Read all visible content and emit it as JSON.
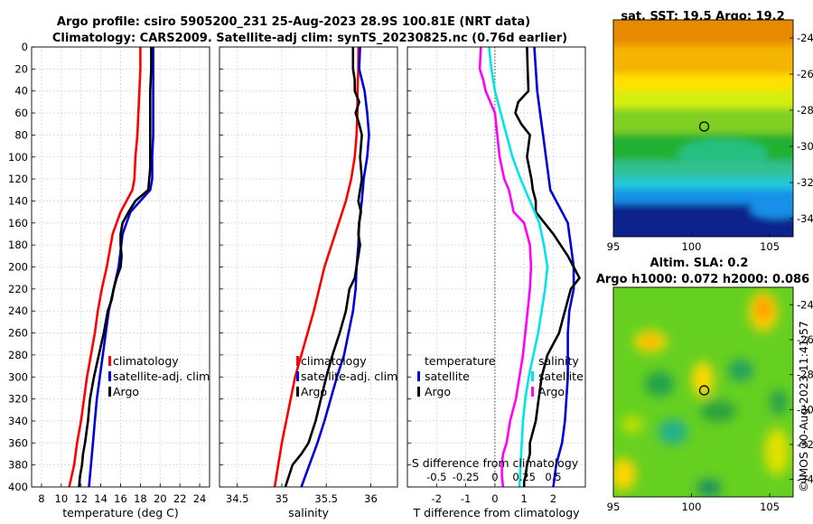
{
  "header": {
    "title_line1": "Argo profile: csiro 5905200_231 25-Aug-2023 28.9S 100.81E (NRT data)",
    "title_line2": "Climatology: CARS2009. Satellite-adj clim: synTS_20230825.nc (0.76d earlier)"
  },
  "credit": "©IMOS 30-Aug-2023 11:41:57",
  "colors": {
    "climatology": "#ff0000",
    "satellite": "#0000dd",
    "argo": "#000000",
    "temp_diff": "#ff00ff",
    "sal_diff": "#00e5e5"
  },
  "depth_axis": {
    "ticks": [
      "0",
      "20",
      "40",
      "60",
      "80",
      "100",
      "120",
      "140",
      "160",
      "180",
      "200",
      "220",
      "240",
      "260",
      "280",
      "300",
      "320",
      "340",
      "360",
      "380",
      "400"
    ],
    "range": [
      0,
      400
    ]
  },
  "chart_data": [
    {
      "type": "line",
      "id": "temperature",
      "xlabel": "temperature (deg C)",
      "xlim": [
        7,
        25
      ],
      "xticks": [
        "8",
        "10",
        "12",
        "14",
        "16",
        "18",
        "20",
        "22",
        "24"
      ],
      "ylim": [
        0,
        400
      ],
      "legend": [
        "climatology",
        "satellite-adj. clim",
        "Argo"
      ],
      "series": [
        {
          "name": "climatology",
          "color": "#ff0000",
          "x": [
            18.0,
            18.0,
            17.9,
            17.8,
            17.7,
            17.5,
            17.4,
            17.2,
            16.0,
            15.2,
            14.6,
            14.1,
            13.7,
            13.4,
            13.0,
            12.6,
            12.3,
            12.0,
            11.6,
            11.3,
            10.8
          ],
          "depth": [
            0,
            20,
            40,
            60,
            80,
            100,
            120,
            130,
            150,
            170,
            200,
            220,
            240,
            260,
            280,
            300,
            320,
            340,
            360,
            380,
            400
          ]
        },
        {
          "name": "satellite-adj. clim",
          "color": "#0000dd",
          "x": [
            19.3,
            19.3,
            19.3,
            19.3,
            19.3,
            19.2,
            19.2,
            19.0,
            17.0,
            16.2,
            15.8,
            15.3,
            14.8,
            14.5,
            14.2,
            13.9,
            13.6,
            13.4,
            13.2,
            13.0,
            12.8
          ],
          "depth": [
            0,
            20,
            40,
            60,
            80,
            100,
            120,
            130,
            150,
            170,
            200,
            220,
            240,
            260,
            280,
            300,
            320,
            340,
            360,
            380,
            400
          ]
        },
        {
          "name": "Argo",
          "color": "#000000",
          "x": [
            19.1,
            19.1,
            19.0,
            19.0,
            19.0,
            19.0,
            19.0,
            18.9,
            18.8,
            17.5,
            16.8,
            16.2,
            16.0,
            16.0,
            16.1,
            16.0,
            15.6,
            15.3,
            15.1,
            14.7,
            14.3,
            13.8,
            13.3,
            12.9,
            12.7,
            12.4,
            12.2,
            12.1,
            11.9,
            11.8
          ],
          "depth": [
            0,
            20,
            40,
            60,
            80,
            100,
            110,
            120,
            130,
            140,
            150,
            160,
            170,
            180,
            190,
            200,
            210,
            220,
            230,
            240,
            260,
            280,
            300,
            320,
            340,
            360,
            370,
            380,
            390,
            400
          ]
        }
      ]
    },
    {
      "type": "line",
      "id": "salinity",
      "xlabel": "salinity",
      "xlim": [
        34.3,
        36.3
      ],
      "xticks": [
        "34.5",
        "35",
        "35.5",
        "36"
      ],
      "ylim": [
        0,
        400
      ],
      "legend": [
        "climatology",
        "satellite-adj. clim",
        "Argo"
      ],
      "series": [
        {
          "name": "climatology",
          "color": "#ff0000",
          "x": [
            35.86,
            35.86,
            35.85,
            35.85,
            35.84,
            35.82,
            35.78,
            35.72,
            35.64,
            35.56,
            35.48,
            35.42,
            35.36,
            35.29,
            35.22,
            35.15,
            35.1,
            35.05,
            35.0,
            34.96,
            34.92
          ],
          "depth": [
            0,
            20,
            40,
            60,
            80,
            100,
            120,
            140,
            160,
            180,
            200,
            220,
            240,
            260,
            280,
            300,
            320,
            340,
            360,
            380,
            400
          ]
        },
        {
          "name": "satellite-adj. clim",
          "color": "#0000dd",
          "x": [
            35.88,
            35.87,
            35.93,
            35.96,
            35.98,
            35.96,
            35.92,
            35.9,
            35.87,
            35.86,
            35.84,
            35.83,
            35.8,
            35.75,
            35.7,
            35.62,
            35.55,
            35.48,
            35.4,
            35.31,
            35.22
          ],
          "depth": [
            0,
            20,
            40,
            60,
            80,
            100,
            120,
            140,
            160,
            180,
            200,
            220,
            240,
            260,
            280,
            300,
            320,
            340,
            360,
            380,
            400
          ]
        },
        {
          "name": "Argo",
          "color": "#000000",
          "x": [
            35.8,
            35.8,
            35.82,
            35.82,
            35.87,
            35.83,
            35.87,
            35.9,
            35.88,
            35.9,
            35.86,
            35.89,
            35.87,
            35.86,
            35.88,
            35.86,
            35.84,
            35.82,
            35.76,
            35.72,
            35.65,
            35.57,
            35.5,
            35.44,
            35.38,
            35.3,
            35.22,
            35.12,
            35.04
          ],
          "depth": [
            0,
            20,
            30,
            40,
            50,
            60,
            70,
            80,
            100,
            120,
            140,
            150,
            160,
            170,
            180,
            190,
            200,
            210,
            220,
            240,
            260,
            280,
            300,
            320,
            340,
            360,
            370,
            380,
            400
          ]
        }
      ]
    },
    {
      "type": "line",
      "id": "differences",
      "xlabel": "T difference from climatology",
      "xlim": [
        -3.0,
        3.1
      ],
      "xticks": [
        "-2",
        "-1",
        "0",
        "1",
        "2"
      ],
      "s_axis_label": "S difference from climatology",
      "s_xlim": [
        -0.75,
        0.775
      ],
      "s_xticks": [
        "-0.5",
        "-0.25",
        "0",
        "0.25",
        "0.5"
      ],
      "ylim": [
        0,
        400
      ],
      "legend": [
        "temperature",
        "satellite",
        "Argo",
        "salinity",
        "satellite",
        "Argo"
      ],
      "series": [
        {
          "name": "temperature satellite",
          "color": "#0000dd",
          "x": [
            1.35,
            1.4,
            1.45,
            1.55,
            1.65,
            1.75,
            1.85,
            1.9,
            2.3,
            2.5,
            2.55,
            2.6,
            2.65,
            2.7,
            2.7,
            2.55,
            2.5,
            2.5,
            2.5,
            2.45,
            2.4,
            2.3,
            2.2,
            2.1,
            2.05,
            2.0
          ],
          "depth": [
            0,
            20,
            40,
            60,
            80,
            100,
            120,
            130,
            150,
            160,
            170,
            180,
            190,
            200,
            220,
            240,
            260,
            280,
            300,
            320,
            340,
            360,
            370,
            380,
            390,
            400
          ]
        },
        {
          "name": "temperature Argo",
          "color": "#000000",
          "x": [
            1.1,
            1.12,
            1.15,
            0.8,
            0.7,
            0.9,
            1.2,
            1.1,
            1.25,
            1.3,
            1.4,
            1.4,
            2.0,
            2.5,
            2.9,
            2.6,
            2.4,
            2.2,
            1.8,
            1.6,
            1.5,
            1.4,
            1.2,
            1.2,
            1.1,
            1.05,
            1.0,
            1.0
          ],
          "depth": [
            0,
            20,
            40,
            50,
            60,
            70,
            80,
            100,
            120,
            130,
            140,
            150,
            170,
            190,
            210,
            220,
            240,
            260,
            280,
            300,
            320,
            340,
            360,
            370,
            380,
            390,
            395,
            400
          ]
        },
        {
          "name": "salinity satellite",
          "color": "#00e5e5",
          "x": [
            -0.05,
            -0.03,
            0.0,
            0.05,
            0.1,
            0.15,
            0.22,
            0.3,
            0.38,
            0.42,
            0.45,
            0.43,
            0.4,
            0.37,
            0.33,
            0.29,
            0.26,
            0.24,
            0.23,
            0.22,
            0.21
          ],
          "depth": [
            0,
            20,
            40,
            60,
            80,
            100,
            120,
            140,
            160,
            180,
            200,
            220,
            240,
            260,
            280,
            300,
            320,
            340,
            360,
            380,
            400
          ]
        },
        {
          "name": "salinity Argo",
          "color": "#ff00ff",
          "x": [
            -0.12,
            -0.13,
            -0.1,
            -0.08,
            0.0,
            0.02,
            0.04,
            0.08,
            0.12,
            0.14,
            0.16,
            0.25,
            0.3,
            0.31,
            0.3,
            0.28,
            0.26,
            0.24,
            0.21,
            0.18,
            0.13,
            0.1,
            0.07,
            0.06,
            0.06,
            0.07
          ],
          "depth": [
            0,
            20,
            30,
            40,
            60,
            80,
            100,
            120,
            130,
            140,
            150,
            160,
            180,
            200,
            220,
            240,
            260,
            280,
            300,
            320,
            340,
            360,
            370,
            380,
            390,
            400
          ]
        }
      ]
    }
  ],
  "maps": {
    "sst": {
      "title": "sat. SST: 19.5 Argo: 19.2",
      "xticks": [
        "95",
        "100",
        "105"
      ],
      "yticks": [
        "-24",
        "-26",
        "-28",
        "-30",
        "-32",
        "-34"
      ],
      "lon_range": [
        95,
        106.5
      ],
      "lat_range": [
        -35,
        -23
      ],
      "marker": {
        "lon": 100.81,
        "lat": -28.9
      }
    },
    "sla": {
      "title_line1": "Altim. SLA: 0.2",
      "title_line2": "Argo h1000: 0.072 h2000: 0.086",
      "xticks": [
        "95",
        "100",
        "105"
      ],
      "yticks": [
        "-24",
        "-26",
        "-28",
        "-30",
        "-32",
        "-34"
      ],
      "lon_range": [
        95,
        106.5
      ],
      "lat_range": [
        -35,
        -23
      ],
      "marker": {
        "lon": 100.81,
        "lat": -28.9
      }
    }
  }
}
